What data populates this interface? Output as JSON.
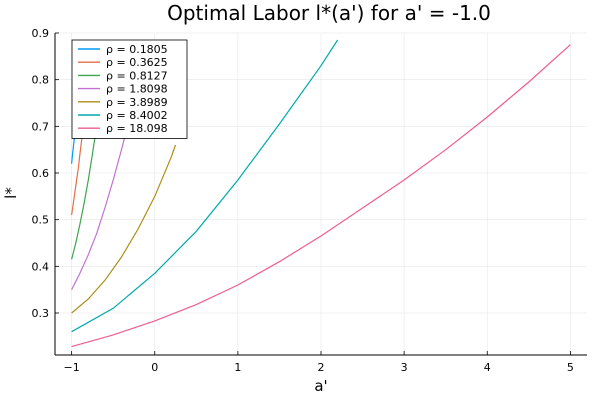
{
  "chart_data": {
    "type": "line",
    "title": "Optimal Labor l*(a') for a' = -1.0",
    "xlabel": "a'",
    "ylabel": "l*",
    "xlim": [
      -1.2,
      5.2
    ],
    "ylim": [
      0.21,
      0.9
    ],
    "xticks": [
      -1,
      0,
      1,
      2,
      3,
      4,
      5
    ],
    "yticks": [
      0.3,
      0.4,
      0.5,
      0.6,
      0.7,
      0.8,
      0.9
    ],
    "grid": true,
    "legend_position": "top-left",
    "series": [
      {
        "name": "ρ = 0.1805",
        "color": "#009AFA",
        "x": [
          -1.0,
          -0.99,
          -0.98,
          -0.97,
          -0.96,
          -0.95,
          -0.94,
          -0.93,
          -0.92
        ],
        "y": [
          0.62,
          0.64,
          0.655,
          0.67,
          0.685,
          0.7,
          0.72,
          0.74,
          0.76
        ]
      },
      {
        "name": "ρ = 0.3625",
        "color": "#E36F47",
        "x": [
          -1.0,
          -0.98,
          -0.96,
          -0.94,
          -0.92,
          -0.9,
          -0.88,
          -0.86
        ],
        "y": [
          0.51,
          0.535,
          0.56,
          0.585,
          0.61,
          0.64,
          0.67,
          0.7
        ]
      },
      {
        "name": "ρ = 0.8127",
        "color": "#3EA44E",
        "x": [
          -1.0,
          -0.95,
          -0.9,
          -0.85,
          -0.8,
          -0.75,
          -0.7
        ],
        "y": [
          0.415,
          0.45,
          0.49,
          0.535,
          0.585,
          0.64,
          0.7
        ]
      },
      {
        "name": "ρ = 1.8098",
        "color": "#C271D2",
        "x": [
          -1.0,
          -0.9,
          -0.8,
          -0.7,
          -0.6,
          -0.5,
          -0.4,
          -0.35
        ],
        "y": [
          0.35,
          0.385,
          0.425,
          0.47,
          0.525,
          0.585,
          0.65,
          0.685
        ]
      },
      {
        "name": "ρ = 3.8989",
        "color": "#AC8D18",
        "x": [
          -1.0,
          -0.8,
          -0.6,
          -0.4,
          -0.2,
          0.0,
          0.2,
          0.25
        ],
        "y": [
          0.3,
          0.33,
          0.37,
          0.42,
          0.48,
          0.55,
          0.635,
          0.66
        ]
      },
      {
        "name": "ρ = 8.4002",
        "color": "#00A9AD",
        "x": [
          -1.0,
          -0.5,
          0.0,
          0.5,
          1.0,
          1.5,
          2.0,
          2.2
        ],
        "y": [
          0.26,
          0.31,
          0.385,
          0.475,
          0.585,
          0.705,
          0.83,
          0.885
        ]
      },
      {
        "name": "ρ = 18.098",
        "color": "#ED5D92",
        "x": [
          -1.0,
          -0.5,
          0.0,
          0.5,
          1.0,
          1.5,
          2.0,
          2.5,
          3.0,
          3.5,
          4.0,
          4.5,
          5.0
        ],
        "y": [
          0.228,
          0.253,
          0.283,
          0.318,
          0.36,
          0.41,
          0.465,
          0.525,
          0.585,
          0.65,
          0.72,
          0.795,
          0.875
        ]
      }
    ]
  }
}
